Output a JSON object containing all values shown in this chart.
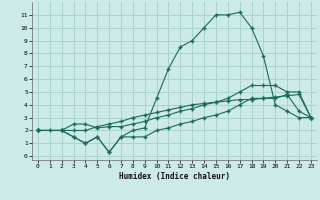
{
  "bg_color": "#cceae7",
  "grid_color": "#aad4d0",
  "line_color": "#1a6b5a",
  "xlabel": "Humidex (Indice chaleur)",
  "xlim": [
    -0.5,
    23.5
  ],
  "ylim": [
    -0.3,
    12
  ],
  "xticks": [
    0,
    1,
    2,
    3,
    4,
    5,
    6,
    7,
    8,
    9,
    10,
    11,
    12,
    13,
    14,
    15,
    16,
    17,
    18,
    19,
    20,
    21,
    22,
    23
  ],
  "yticks": [
    0,
    1,
    2,
    3,
    4,
    5,
    6,
    7,
    8,
    9,
    10,
    11
  ],
  "line1_x": [
    0,
    1,
    2,
    3,
    4,
    5,
    6,
    7,
    8,
    9,
    10,
    11,
    12,
    13,
    14,
    15,
    16,
    17,
    18,
    19,
    20,
    21,
    22,
    23
  ],
  "line1_y": [
    2,
    2,
    2,
    2,
    2,
    2.3,
    2.5,
    2.7,
    3.0,
    3.2,
    3.4,
    3.6,
    3.8,
    4.0,
    4.1,
    4.2,
    4.3,
    4.4,
    4.4,
    4.5,
    4.6,
    4.7,
    4.8,
    3.0
  ],
  "line2_x": [
    0,
    2,
    3,
    4,
    5,
    6,
    7,
    8,
    9,
    10,
    11,
    12,
    13,
    14,
    15,
    16,
    17,
    18,
    19,
    20,
    21,
    22,
    23
  ],
  "line2_y": [
    2,
    2,
    2.5,
    2.5,
    2.2,
    2.3,
    2.3,
    2.5,
    2.7,
    3.0,
    3.2,
    3.5,
    3.7,
    4.0,
    4.2,
    4.5,
    5.0,
    5.5,
    5.5,
    5.5,
    5.0,
    5.0,
    3.0
  ],
  "line3_x": [
    0,
    2,
    3,
    4,
    5,
    6,
    7,
    8,
    9,
    10,
    11,
    12,
    13,
    14,
    15,
    16,
    17,
    18,
    19,
    20,
    21,
    22,
    23
  ],
  "line3_y": [
    2,
    2,
    1.5,
    1.0,
    1.5,
    0.3,
    1.5,
    1.5,
    1.5,
    2.0,
    2.2,
    2.5,
    2.7,
    3.0,
    3.2,
    3.5,
    4.0,
    4.5,
    4.5,
    4.5,
    4.8,
    3.5,
    3.0
  ],
  "line4_x": [
    0,
    2,
    3,
    4,
    5,
    6,
    7,
    8,
    9,
    10,
    11,
    12,
    13,
    14,
    15,
    16,
    17,
    18,
    19,
    20,
    21,
    22,
    23
  ],
  "line4_y": [
    2,
    2,
    1.5,
    1.0,
    1.5,
    0.3,
    1.5,
    2.0,
    2.2,
    4.5,
    6.8,
    8.5,
    9.0,
    10.0,
    11.0,
    11.0,
    11.2,
    10.0,
    7.8,
    4.0,
    3.5,
    3.0,
    3.0
  ]
}
